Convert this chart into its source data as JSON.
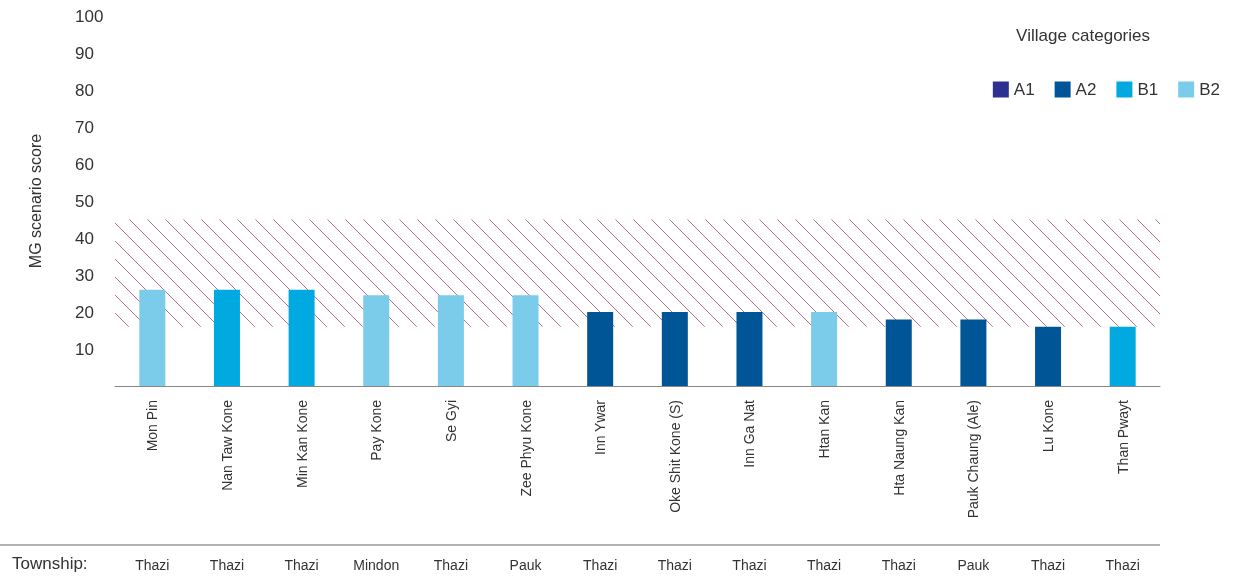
{
  "chart_data": {
    "type": "bar",
    "ylabel": "MG scenario score",
    "legend_title": "Village categories",
    "legend": "top right",
    "grid": false,
    "categories": [
      "Mon Pin",
      "Nan Taw Kone",
      "Min Kan Kone",
      "Pay Kone",
      "Se Gyi",
      "Zee Phyu Kone",
      "Inn Ywar",
      "Oke Shit Kone (S)",
      "Inn Ga Nat",
      "Htan Kan",
      "Hta Naung Kan",
      "Pauk Chaung (Ale)",
      "Lu Kone",
      "Than Pwayt"
    ],
    "series": [
      {
        "name": "A1",
        "color": "#2e3192",
        "values": [
          null,
          null,
          null,
          null,
          null,
          null,
          null,
          null,
          null,
          null,
          null,
          null,
          null,
          null
        ]
      },
      {
        "name": "A2",
        "color": "#005596",
        "values": [
          null,
          null,
          null,
          null,
          null,
          null,
          20,
          20,
          20,
          null,
          18,
          18,
          16,
          null
        ]
      },
      {
        "name": "B1",
        "color": "#00a9e0",
        "values": [
          null,
          26,
          26,
          null,
          null,
          null,
          null,
          null,
          null,
          null,
          null,
          null,
          null,
          16
        ]
      },
      {
        "name": "B2",
        "color": "#7accea",
        "values": [
          26,
          null,
          null,
          24.5,
          24.5,
          24.5,
          null,
          null,
          null,
          20,
          null,
          null,
          null,
          null
        ]
      }
    ],
    "ylim": [
      0,
      100
    ],
    "yticks": [
      10,
      20,
      30,
      40,
      50,
      60,
      70,
      80,
      90,
      100
    ],
    "bands": [
      {
        "axis": "y",
        "from": 16,
        "to": 45,
        "color": "#b5739a"
      }
    ],
    "annotations": [
      "Township:",
      "Thazi",
      "Thazi",
      "Thazi",
      "Mindon",
      "Thazi",
      "Pauk",
      "Thazi",
      "Thazi",
      "Thazi",
      "Thazi",
      "Thazi",
      "Pauk",
      "Thazi",
      "Thazi"
    ]
  }
}
